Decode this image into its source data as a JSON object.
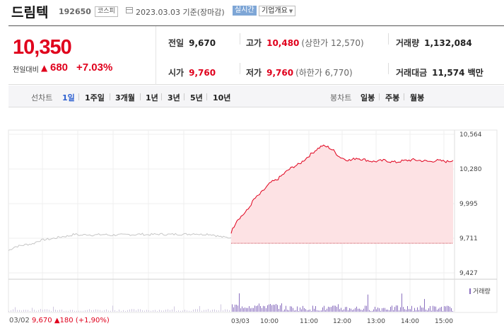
{
  "header": {
    "stock_name": "드림텍",
    "stock_code": "192650",
    "market_badge": "코스피",
    "date_text": "2023.03.03 기준(장마감)",
    "realtime_button": "실시간",
    "company_overview_button": "기업개요"
  },
  "quote": {
    "price": "10,350",
    "change_label": "전일대비",
    "change_value": "680",
    "change_percent": "+7.03%",
    "prev_close_label": "전일",
    "prev_close": "9,670",
    "high_label": "고가",
    "high": "10,480",
    "upper_limit": "(상한가 12,570)",
    "volume_label": "거래량",
    "volume": "1,132,084",
    "open_label": "시가",
    "open": "9,760",
    "low_label": "저가",
    "low": "9,760",
    "lower_limit": "(하한가 6,770)",
    "trade_value_label": "거래대금",
    "trade_value": "11,574 백만"
  },
  "tabs": {
    "line_chart_label": "선차트",
    "periods": [
      "1일",
      "1주일",
      "3개월",
      "1년",
      "3년",
      "5년",
      "10년"
    ],
    "active_period": "1일",
    "candle_chart_label": "봉차트",
    "candles": [
      "일봉",
      "주봉",
      "월봉"
    ]
  },
  "colors": {
    "up": "#e0001c",
    "active_tab": "#2c5fd0",
    "prev_line": "#cccccc",
    "volume": "#8a6fbf"
  },
  "chart_data": {
    "type": "line",
    "y_ticks": [
      "10,564",
      "10,280",
      "9,995",
      "9,711",
      "9,427"
    ],
    "y_values": [
      10564,
      10280,
      9995,
      9711,
      9427
    ],
    "ylim": [
      9427,
      10564
    ],
    "x_ticks": [
      "03/03",
      "10:00",
      "11:00",
      "12:00",
      "13:00",
      "14:00",
      "15:00"
    ],
    "reference_line": 9670,
    "series": [
      {
        "values": [
          9760,
          9860,
          9900,
          9950,
          10030,
          10070,
          10120,
          10170,
          10190,
          10230,
          10270,
          10300,
          10320,
          10360,
          10400,
          10440,
          10470,
          10460,
          10430,
          10380,
          10360,
          10350,
          10370,
          10360,
          10350,
          10340,
          10345,
          10350,
          10340,
          10335,
          10345,
          10350,
          10355,
          10350,
          10345,
          10340,
          10350,
          10345,
          10340,
          10350
        ]
      },
      {
        "values": [
          9610,
          9640,
          9650,
          9660,
          9665,
          9690,
          9700,
          9705,
          9715,
          9725,
          9730,
          9745,
          9735,
          9742,
          9738,
          9740,
          9742,
          9735,
          9740,
          9738,
          9742,
          9740,
          9745,
          9740,
          9742,
          9745,
          9743,
          9742,
          9745,
          9743,
          9745,
          9750,
          9742,
          9746,
          9740,
          9726,
          9718,
          9715
        ]
      }
    ]
  },
  "volume_label": "거래량",
  "prev_day": {
    "date": "03/02",
    "price": "9,670",
    "change": "180",
    "percent": "(+1,90%)"
  }
}
